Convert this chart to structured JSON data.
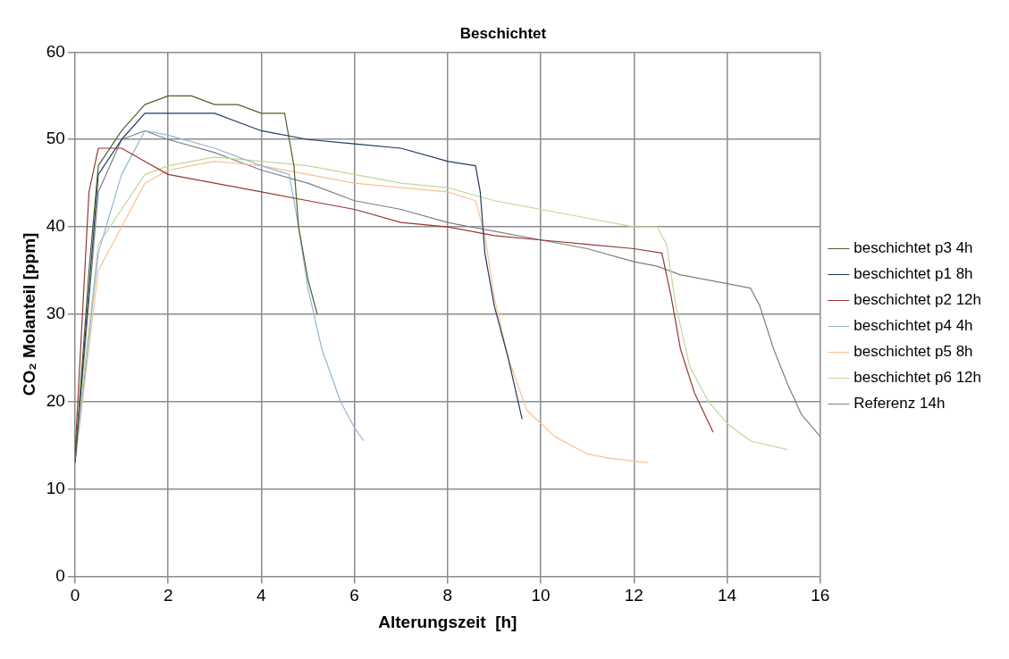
{
  "chart_data": {
    "type": "line",
    "title": "Beschichtet",
    "xlabel": "Alterungszeit  [h]",
    "ylabel": "CO₂ Molanteil [ppm]",
    "xlim": [
      0,
      16
    ],
    "xticks": [
      0,
      2,
      4,
      6,
      8,
      10,
      12,
      14,
      16
    ],
    "ylim": [
      0,
      60
    ],
    "yticks": [
      0,
      10,
      20,
      30,
      40,
      50,
      60
    ],
    "grid": true,
    "legend": "right",
    "marker": "none",
    "line_style": "solid",
    "series": [
      {
        "name": "beschichtet p3 4h",
        "color": "#4f6228",
        "x": [
          0,
          0.3,
          0.5,
          1,
          1.5,
          2,
          2.5,
          3,
          3.5,
          4,
          4.5,
          4.7,
          4.8,
          5,
          5.2
        ],
        "values": [
          13,
          35,
          47,
          51,
          54,
          55,
          55,
          54,
          54,
          53,
          53,
          47,
          40,
          34,
          30
        ]
      },
      {
        "name": "beschichtet p1 8h",
        "color": "#1f3864",
        "x": [
          0,
          0.5,
          1,
          1.5,
          2,
          3,
          4,
          5,
          6,
          7,
          8,
          8.6,
          8.7,
          8.8,
          9,
          9.3,
          9.6
        ],
        "values": [
          13,
          46,
          50,
          53,
          53,
          53,
          51,
          50,
          49.5,
          49,
          47.5,
          47,
          44,
          37,
          31,
          25,
          18
        ]
      },
      {
        "name": "beschichtet p2 12h",
        "color": "#953735",
        "x": [
          0,
          0.3,
          0.5,
          1,
          1.5,
          2,
          3,
          4,
          5,
          6,
          7,
          8,
          9,
          10,
          11,
          12,
          12.6,
          12.8,
          13,
          13.3,
          13.7
        ],
        "values": [
          14,
          44,
          49,
          49,
          47.5,
          46,
          45,
          44,
          43,
          42,
          40.5,
          40,
          39,
          38.5,
          38,
          37.5,
          37,
          32,
          26,
          21,
          16.5
        ]
      },
      {
        "name": "beschichtet p4 4h",
        "color": "#95b3d7",
        "x": [
          0,
          0.5,
          1,
          1.5,
          2,
          3,
          4,
          4.6,
          4.8,
          5,
          5.3,
          5.7,
          6,
          6.2
        ],
        "values": [
          13,
          37,
          46,
          51,
          50.5,
          49,
          47,
          46,
          40,
          33,
          26,
          20,
          17,
          15.5
        ]
      },
      {
        "name": "beschichtet p5 8h",
        "color": "#fac090",
        "x": [
          0,
          0.5,
          1,
          1.5,
          2,
          2.5,
          3,
          4,
          5,
          6,
          7,
          8,
          8.6,
          8.8,
          9,
          9.3,
          9.7,
          10.3,
          11,
          11.5,
          12.3
        ],
        "values": [
          13,
          35,
          40,
          45,
          46.5,
          47,
          47.5,
          47,
          46,
          45,
          44.5,
          44,
          43,
          39,
          32,
          25,
          19,
          16,
          14,
          13.5,
          13
        ]
      },
      {
        "name": "beschichtet p6 12h",
        "color": "#c3d69b",
        "x": [
          0,
          0.5,
          1,
          1.5,
          2,
          3,
          4,
          5,
          6,
          7,
          8,
          9,
          10,
          11,
          12,
          12.5,
          12.7,
          12.9,
          13.2,
          13.6,
          14,
          14.5,
          15.3
        ],
        "values": [
          14,
          38,
          42,
          46,
          47,
          48,
          47.5,
          47,
          46,
          45,
          44.5,
          43,
          42,
          41,
          40,
          40,
          38,
          31,
          24,
          20,
          17.5,
          15.5,
          14.5
        ]
      },
      {
        "name": "Referenz 14h",
        "color": "#7f7f7f",
        "x": [
          0,
          0.5,
          1,
          1.5,
          2,
          3,
          4,
          5,
          6,
          7,
          8,
          9,
          10,
          11,
          12,
          12.5,
          13,
          14,
          14.5,
          14.7,
          15,
          15.3,
          15.6,
          16
        ],
        "values": [
          13,
          44,
          50,
          51,
          50,
          48.5,
          46.5,
          45,
          43,
          42,
          40.5,
          39.5,
          38.5,
          37.5,
          36,
          35.5,
          34.5,
          33.5,
          33,
          31,
          26,
          22,
          18.5,
          16
        ]
      }
    ]
  }
}
